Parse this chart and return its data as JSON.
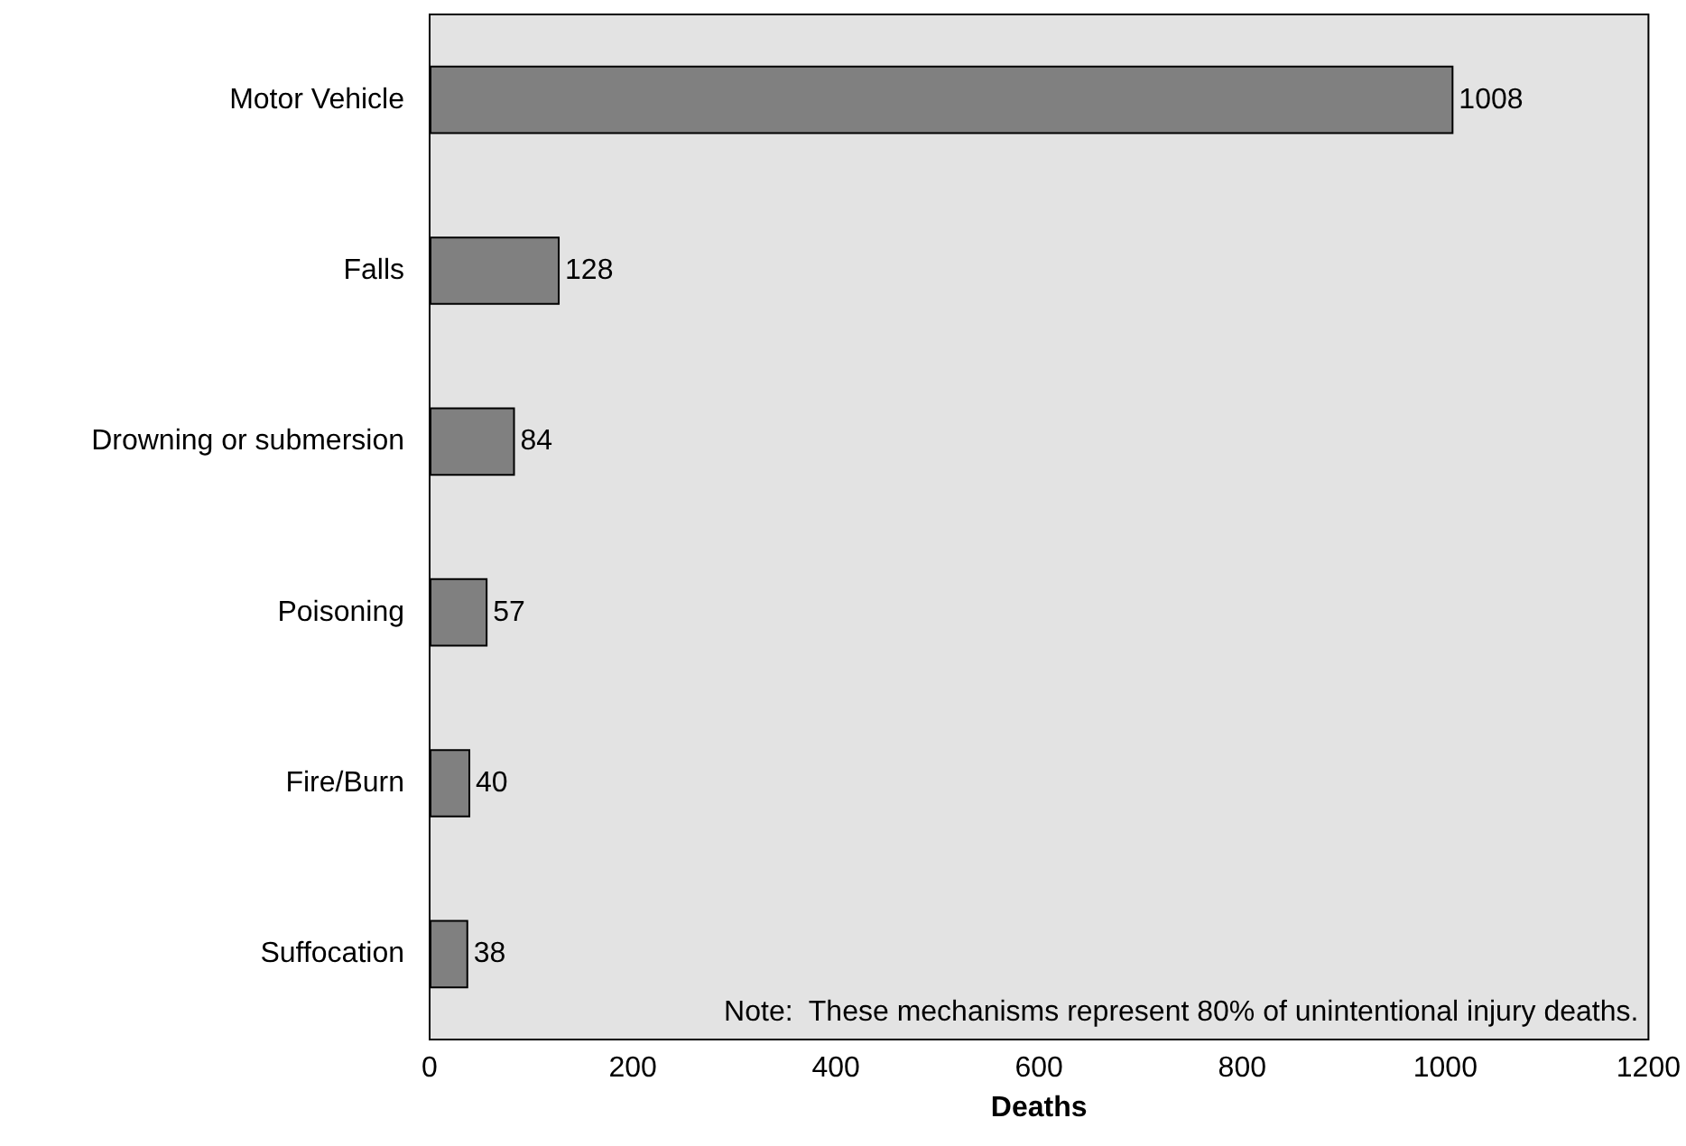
{
  "chart_data": {
    "type": "bar",
    "orientation": "horizontal",
    "xlabel": "Deaths",
    "categories": [
      "Motor Vehicle",
      "Falls",
      "Drowning or submersion",
      "Poisoning",
      "Fire/Burn",
      "Suffocation"
    ],
    "values": [
      1008,
      128,
      84,
      57,
      40,
      38
    ],
    "color": "#808080",
    "xlim": [
      0,
      1200
    ],
    "xticks": [
      0,
      200,
      400,
      600,
      800,
      1000,
      1200
    ],
    "grid": false,
    "data_labels": true,
    "annotations": [
      "Note:  These mechanisms represent 80% of unintentional injury deaths."
    ]
  }
}
